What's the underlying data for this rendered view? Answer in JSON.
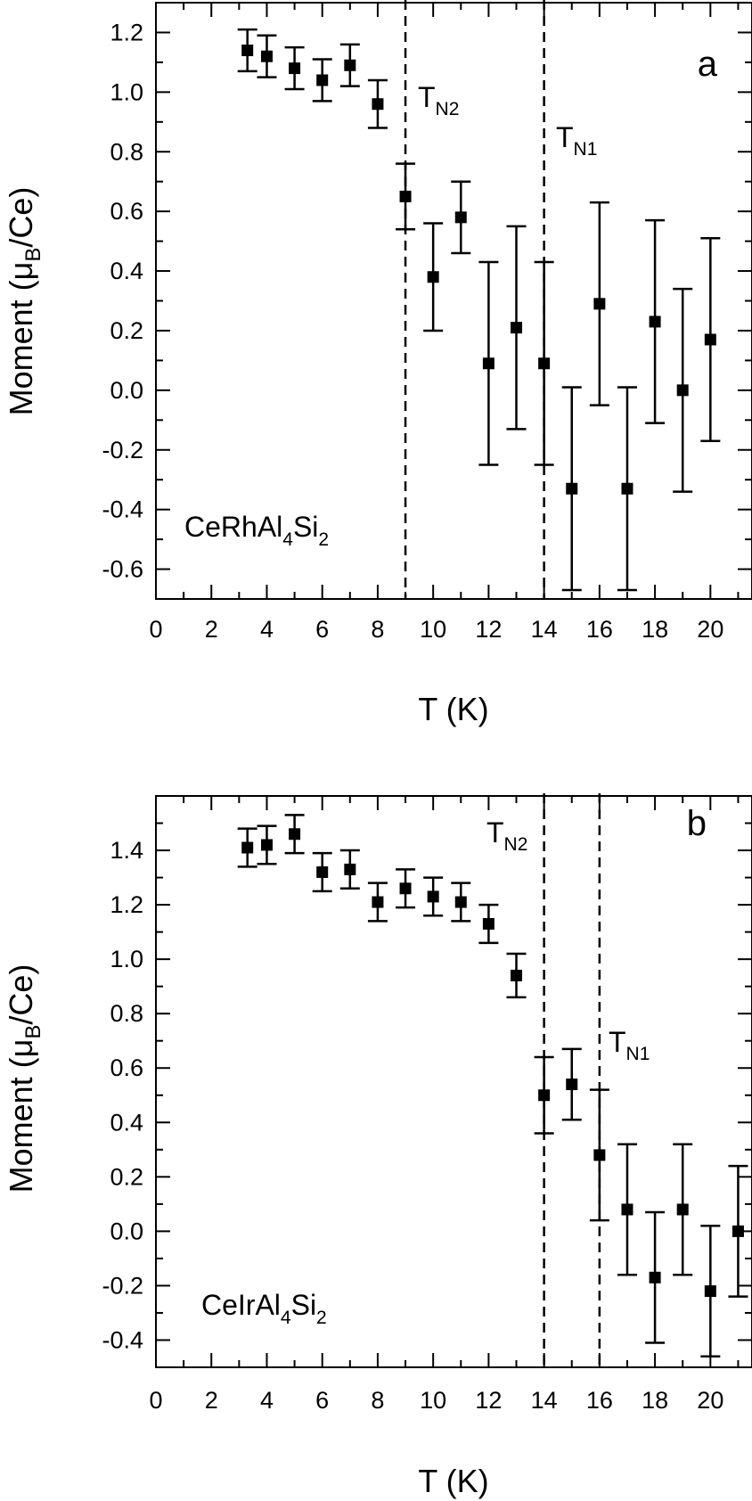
{
  "chart_data": [
    {
      "type": "scatter",
      "panel_label": "a",
      "compound": "CeRhAl4Si2",
      "compound_parts": {
        "base": "CeRhAl",
        "sub1": "4",
        "mid": "Si",
        "sub2": "2"
      },
      "xlabel": "T (K)",
      "ylabel": "Moment (μB/Ce)",
      "ylabel_parts": {
        "pre": "Moment (μ",
        "sub": "B",
        "post": "/Ce)"
      },
      "xlim": [
        0,
        21.5
      ],
      "ylim": [
        -0.7,
        1.3
      ],
      "x_ticks": [
        0,
        2,
        4,
        6,
        8,
        10,
        12,
        14,
        16,
        18,
        20
      ],
      "x_tick_labels": [
        "0",
        "2",
        "4",
        "6",
        "8",
        "10",
        "12",
        "14",
        "16",
        "18",
        "20"
      ],
      "y_ticks": [
        -0.6,
        -0.4,
        -0.2,
        0.0,
        0.2,
        0.4,
        0.6,
        0.8,
        1.0,
        1.2
      ],
      "y_tick_labels": [
        "-0.6",
        "-0.4",
        "-0.2",
        "0.0",
        "0.2",
        "0.4",
        "0.6",
        "0.8",
        "1.0",
        "1.2"
      ],
      "grid": false,
      "vlines": [
        {
          "x": 9.0,
          "label": "T",
          "sub": "N2"
        },
        {
          "x": 14.0,
          "label": "T",
          "sub": "N1"
        }
      ],
      "points": [
        {
          "x": 3.3,
          "y": 1.14,
          "err": 0.07
        },
        {
          "x": 4.0,
          "y": 1.12,
          "err": 0.07
        },
        {
          "x": 5.0,
          "y": 1.08,
          "err": 0.07
        },
        {
          "x": 6.0,
          "y": 1.04,
          "err": 0.07
        },
        {
          "x": 7.0,
          "y": 1.09,
          "err": 0.07
        },
        {
          "x": 8.0,
          "y": 0.96,
          "err": 0.08
        },
        {
          "x": 9.0,
          "y": 0.65,
          "err": 0.11
        },
        {
          "x": 10.0,
          "y": 0.38,
          "err": 0.18
        },
        {
          "x": 11.0,
          "y": 0.58,
          "err": 0.12
        },
        {
          "x": 12.0,
          "y": 0.09,
          "err": 0.34
        },
        {
          "x": 13.0,
          "y": 0.21,
          "err": 0.34
        },
        {
          "x": 14.0,
          "y": 0.09,
          "err": 0.34
        },
        {
          "x": 15.0,
          "y": -0.33,
          "err": 0.34
        },
        {
          "x": 16.0,
          "y": 0.29,
          "err": 0.34
        },
        {
          "x": 17.0,
          "y": -0.33,
          "err": 0.34
        },
        {
          "x": 18.0,
          "y": 0.23,
          "err": 0.34
        },
        {
          "x": 19.0,
          "y": 0.0,
          "err": 0.34
        },
        {
          "x": 20.0,
          "y": 0.17,
          "err": 0.34
        }
      ]
    },
    {
      "type": "scatter",
      "panel_label": "b",
      "compound": "CeIrAl4Si2",
      "compound_parts": {
        "base": "CeIrAl",
        "sub1": "4",
        "mid": "Si",
        "sub2": "2"
      },
      "xlabel": "T (K)",
      "ylabel": "Moment (μB/Ce)",
      "ylabel_parts": {
        "pre": "Moment (μ",
        "sub": "B",
        "post": "/Ce)"
      },
      "xlim": [
        0,
        21.5
      ],
      "ylim": [
        -0.5,
        1.6
      ],
      "x_ticks": [
        0,
        2,
        4,
        6,
        8,
        10,
        12,
        14,
        16,
        18,
        20
      ],
      "x_tick_labels": [
        "0",
        "2",
        "4",
        "6",
        "8",
        "10",
        "12",
        "14",
        "16",
        "18",
        "20"
      ],
      "y_ticks": [
        -0.4,
        -0.2,
        0.0,
        0.2,
        0.4,
        0.6,
        0.8,
        1.0,
        1.2,
        1.4
      ],
      "y_tick_labels": [
        "-0.4",
        "-0.2",
        "0.0",
        "0.2",
        "0.4",
        "0.6",
        "0.8",
        "1.0",
        "1.2",
        "1.4"
      ],
      "grid": false,
      "vlines": [
        {
          "x": 14.0,
          "label": "T",
          "sub": "N2"
        },
        {
          "x": 16.0,
          "label": "T",
          "sub": "N1"
        }
      ],
      "points": [
        {
          "x": 3.3,
          "y": 1.41,
          "err": 0.07
        },
        {
          "x": 4.0,
          "y": 1.42,
          "err": 0.07
        },
        {
          "x": 5.0,
          "y": 1.46,
          "err": 0.07
        },
        {
          "x": 6.0,
          "y": 1.32,
          "err": 0.07
        },
        {
          "x": 7.0,
          "y": 1.33,
          "err": 0.07
        },
        {
          "x": 8.0,
          "y": 1.21,
          "err": 0.07
        },
        {
          "x": 9.0,
          "y": 1.26,
          "err": 0.07
        },
        {
          "x": 10.0,
          "y": 1.23,
          "err": 0.07
        },
        {
          "x": 11.0,
          "y": 1.21,
          "err": 0.07
        },
        {
          "x": 12.0,
          "y": 1.13,
          "err": 0.07
        },
        {
          "x": 13.0,
          "y": 0.94,
          "err": 0.08
        },
        {
          "x": 14.0,
          "y": 0.5,
          "err": 0.14
        },
        {
          "x": 15.0,
          "y": 0.54,
          "err": 0.13
        },
        {
          "x": 16.0,
          "y": 0.28,
          "err": 0.24
        },
        {
          "x": 17.0,
          "y": 0.08,
          "err": 0.24
        },
        {
          "x": 18.0,
          "y": -0.17,
          "err": 0.24
        },
        {
          "x": 19.0,
          "y": 0.08,
          "err": 0.24
        },
        {
          "x": 20.0,
          "y": -0.22,
          "err": 0.24
        },
        {
          "x": 21.0,
          "y": 0.0,
          "err": 0.24
        }
      ]
    }
  ]
}
